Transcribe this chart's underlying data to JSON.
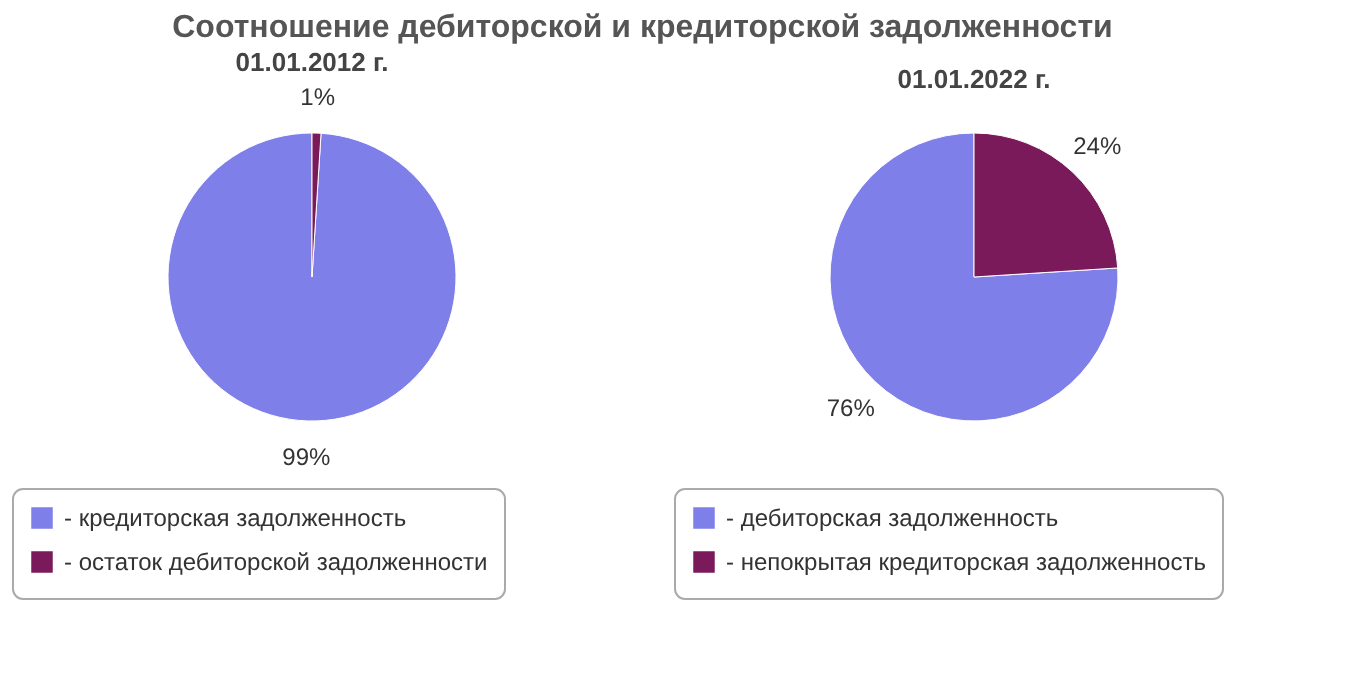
{
  "chart_data": [
    {
      "type": "pie",
      "title": "Соотношение дебиторской и кредиторской задолженности",
      "subtitle": "01.01.2012 г.",
      "categories": [
        "- кредиторская задолженность",
        "- остаток дебиторской задолженности"
      ],
      "values": [
        99,
        1
      ],
      "value_labels": [
        "99%",
        "1%"
      ],
      "colors": [
        "#7f7fea",
        "#7a1a5a"
      ],
      "legend": "bottom"
    },
    {
      "type": "pie",
      "subtitle": "01.01.2022 г.",
      "categories": [
        "- дебиторская задолженность",
        "- непокрытая кредиторская задолженность"
      ],
      "values": [
        76,
        24
      ],
      "value_labels": [
        "76%",
        "24%"
      ],
      "colors": [
        "#7f7fea",
        "#7a1a5a"
      ],
      "legend": "bottom"
    }
  ]
}
